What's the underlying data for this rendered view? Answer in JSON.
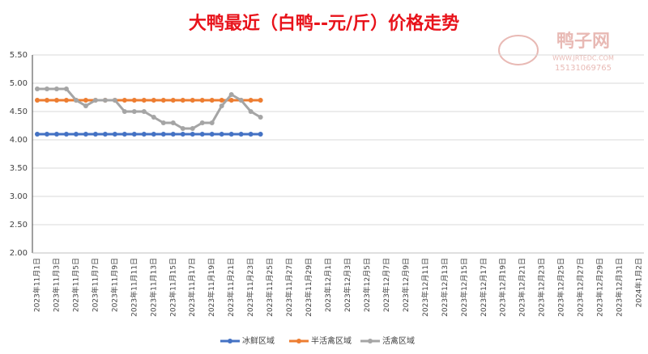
{
  "chart_data": {
    "type": "line",
    "title": "大鸭最近（白鸭--元/斤）价格走势",
    "watermark": {
      "name": "鸭子网",
      "site": "WWW.JRTEDC.COM",
      "phone": "15131069765"
    },
    "categories": [
      "2023年11月1日",
      null,
      "2023年11月3日",
      null,
      "2023年11月5日",
      null,
      "2023年11月7日",
      null,
      "2023年11月9日",
      null,
      "2023年11月11日",
      null,
      "2023年11月13日",
      null,
      "2023年11月15日",
      null,
      "2023年11月17日",
      null,
      "2023年11月19日",
      null,
      "2023年11月21日",
      null,
      "2023年11月23日",
      null,
      "2023年11月25日",
      null,
      "2023年11月27日",
      null,
      "2023年11月29日",
      null,
      "2023年12月1日",
      null,
      "2023年12月3日",
      null,
      "2023年12月5日",
      null,
      "2023年12月7日",
      null,
      "2023年12月9日",
      null,
      "2023年12月11日",
      null,
      "2023年12月13日",
      null,
      "2023年12月15日",
      null,
      "2023年12月17日",
      null,
      "2023年12月19日",
      null,
      "2023年12月21日",
      null,
      "2023年12月23日",
      null,
      "2023年12月25日",
      null,
      "2023年12月27日",
      null,
      "2023年12月29日",
      null,
      "2023年12月31日",
      null,
      "2024年1月2日"
    ],
    "series": [
      {
        "name": "冰鲜区域",
        "color": "#4472c4",
        "values": [
          4.1,
          4.1,
          4.1,
          4.1,
          4.1,
          4.1,
          4.1,
          4.1,
          4.1,
          4.1,
          4.1,
          4.1,
          4.1,
          4.1,
          4.1,
          4.1,
          4.1,
          4.1,
          4.1,
          4.1,
          4.1,
          4.1,
          4.1,
          4.1,
          null,
          null,
          null,
          null,
          null,
          null,
          null,
          null,
          null,
          null,
          null,
          null,
          null,
          null,
          null,
          null,
          null,
          null,
          null,
          null,
          null,
          null,
          null,
          null,
          null,
          null,
          null,
          null,
          null,
          null,
          null,
          null,
          null,
          null,
          null,
          null,
          null,
          null,
          null
        ]
      },
      {
        "name": "半活禽区域",
        "color": "#ed7d31",
        "values": [
          4.7,
          4.7,
          4.7,
          4.7,
          4.7,
          4.7,
          4.7,
          4.7,
          4.7,
          4.7,
          4.7,
          4.7,
          4.7,
          4.7,
          4.7,
          4.7,
          4.7,
          4.7,
          4.7,
          4.7,
          4.7,
          4.7,
          4.7,
          4.7,
          null,
          null,
          null,
          null,
          null,
          null,
          null,
          null,
          null,
          null,
          null,
          null,
          null,
          null,
          null,
          null,
          null,
          null,
          null,
          null,
          null,
          null,
          null,
          null,
          null,
          null,
          null,
          null,
          null,
          null,
          null,
          null,
          null,
          null,
          null,
          null,
          null,
          null,
          null
        ]
      },
      {
        "name": "活禽区域",
        "color": "#a5a5a5",
        "values": [
          4.9,
          4.9,
          4.9,
          4.9,
          4.7,
          4.6,
          4.7,
          4.7,
          4.7,
          4.5,
          4.5,
          4.5,
          4.4,
          4.3,
          4.3,
          4.2,
          4.2,
          4.3,
          4.3,
          4.6,
          4.8,
          4.7,
          4.5,
          4.4,
          null,
          null,
          null,
          null,
          null,
          null,
          null,
          null,
          null,
          null,
          null,
          null,
          null,
          null,
          null,
          null,
          null,
          null,
          null,
          null,
          null,
          null,
          null,
          null,
          null,
          null,
          null,
          null,
          null,
          null,
          null,
          null,
          null,
          null,
          null,
          null,
          null,
          null,
          null
        ]
      }
    ],
    "ylim": [
      2,
      5.5
    ],
    "yticks": [
      {
        "value": 2,
        "label": "2.00"
      },
      {
        "value": 2.5,
        "label": "2.50"
      },
      {
        "value": 3,
        "label": "3.00"
      },
      {
        "value": 3.5,
        "label": "3.50"
      },
      {
        "value": 4,
        "label": "4.00"
      },
      {
        "value": 4.5,
        "label": "4.50"
      },
      {
        "value": 5,
        "label": "5.00"
      },
      {
        "value": 5.5,
        "label": "5.50"
      }
    ],
    "grid": true,
    "legend": "bottom"
  }
}
